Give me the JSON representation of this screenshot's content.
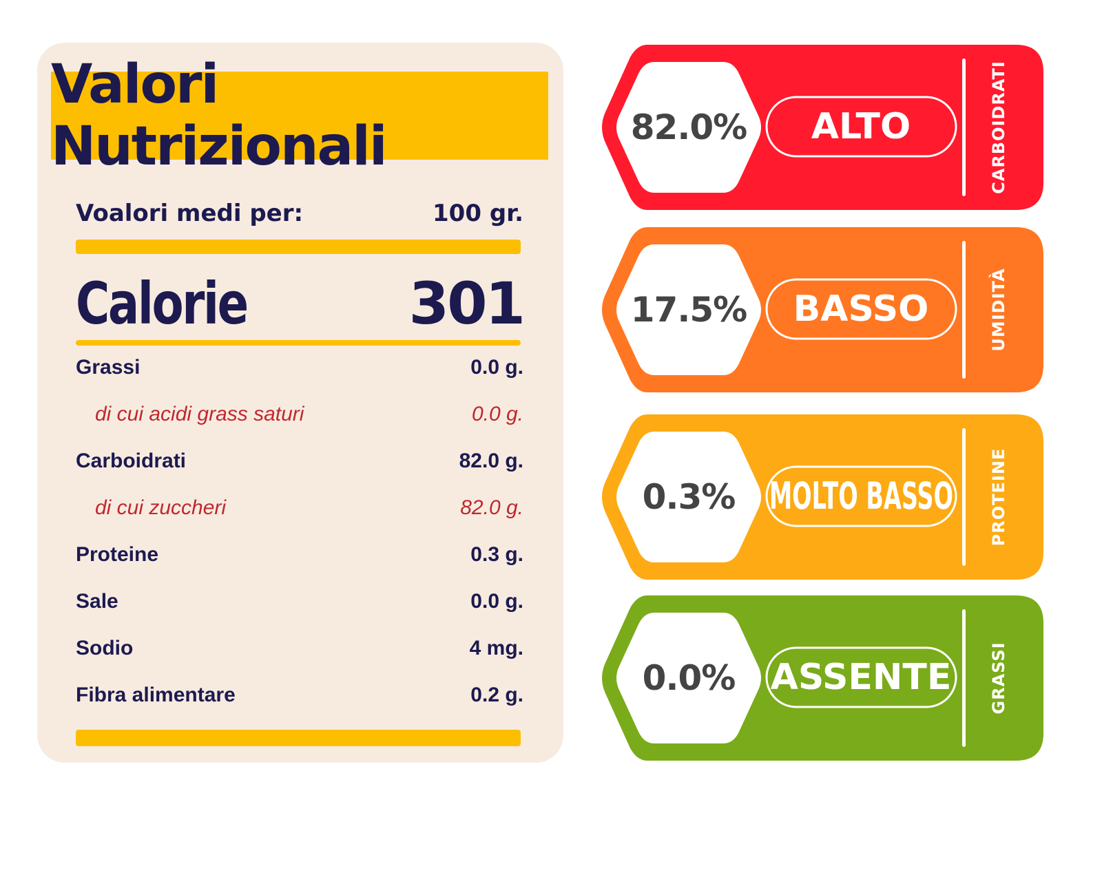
{
  "label": {
    "title": "Valori Nutrizionali",
    "serving_label": "Voalori medi per:",
    "serving_value": "100 gr.",
    "calories_label": "Calorie",
    "calories_value": "301",
    "nutrients": [
      {
        "name": "Grassi",
        "value": "0.0 g.",
        "sub": false
      },
      {
        "name": "di cui acidi grass saturi",
        "value": "0.0 g.",
        "sub": true
      },
      {
        "name": "Carboidrati",
        "value": "82.0 g.",
        "sub": false
      },
      {
        "name": "di cui zuccheri",
        "value": "82.0 g.",
        "sub": true
      },
      {
        "name": "Proteine",
        "value": "0.3 g.",
        "sub": false
      },
      {
        "name": "Sale",
        "value": "0.0 g.",
        "sub": false
      },
      {
        "name": "Sodio",
        "value": "4 mg.",
        "sub": false
      },
      {
        "name": "Fibra alimentare",
        "value": "0.2 g.",
        "sub": false
      }
    ]
  },
  "badges": [
    {
      "percent": "82.0%",
      "level": "ALTO",
      "category": "CARBOIDRATI",
      "color": "#FF1A2E"
    },
    {
      "percent": "17.5%",
      "level": "BASSO",
      "category": "UMIDITÀ",
      "color": "#FF7722"
    },
    {
      "percent": "0.3%",
      "level": "MOLTO BASSO",
      "category": "PROTEINE",
      "color": "#FDAA14"
    },
    {
      "percent": "0.0%",
      "level": "ASSENTE",
      "category": "GRASSI",
      "color": "#7AAB1A"
    }
  ],
  "colors": {
    "navy": "#1C1A4F",
    "yellow": "#FDBE00",
    "cream": "#F7EBE0",
    "sub_red": "#C0272D"
  }
}
